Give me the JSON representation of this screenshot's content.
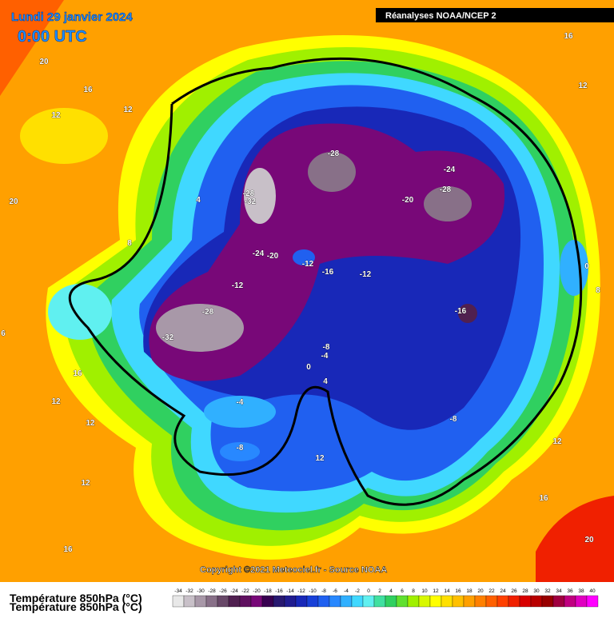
{
  "header": {
    "date": "Lundi 29 janvier 2024",
    "time": "0:00 UTC",
    "source": "Réanalyses NOAA/NCEP 2"
  },
  "copyright": "Copyright ©2021 Meteociel.fr - Source NOAA",
  "legend": {
    "title": "Température 850hPa (°C)",
    "ticks": [
      -34,
      -32,
      -30,
      -28,
      -26,
      -24,
      -22,
      -20,
      -18,
      -16,
      -14,
      -12,
      -10,
      -8,
      -6,
      -4,
      -2,
      0,
      2,
      4,
      6,
      8,
      10,
      12,
      14,
      16,
      18,
      20,
      22,
      24,
      26,
      28,
      30,
      32,
      34,
      36,
      38,
      40
    ],
    "colors": [
      "#e8e8e8",
      "#c8c0c8",
      "#a898a8",
      "#887088",
      "#684868",
      "#502050",
      "#601060",
      "#780878",
      "#380050",
      "#281870",
      "#201c90",
      "#1828b8",
      "#1840d8",
      "#2060f0",
      "#2888ff",
      "#30b0ff",
      "#40d8ff",
      "#60f0f0",
      "#40e0a0",
      "#30d060",
      "#60e030",
      "#a0f000",
      "#d8f800",
      "#ffff00",
      "#ffe000",
      "#ffc000",
      "#ffa000",
      "#ff8000",
      "#ff6000",
      "#ff4000",
      "#f02000",
      "#d80000",
      "#b80000",
      "#980000",
      "#a00040",
      "#c00080",
      "#e000c0",
      "#ff00ff"
    ]
  },
  "contour_labels": [
    20,
    16,
    12,
    12,
    20,
    4,
    8,
    -28,
    -24,
    -28,
    -20,
    -28,
    -32,
    -24,
    -20,
    -12,
    -16,
    -12,
    -12,
    -28,
    -32,
    -16,
    -8,
    -4,
    0,
    4,
    -4,
    -8,
    -8,
    12,
    16,
    12,
    12,
    12,
    16,
    16,
    12,
    0,
    8,
    12,
    16,
    20,
    6
  ]
}
